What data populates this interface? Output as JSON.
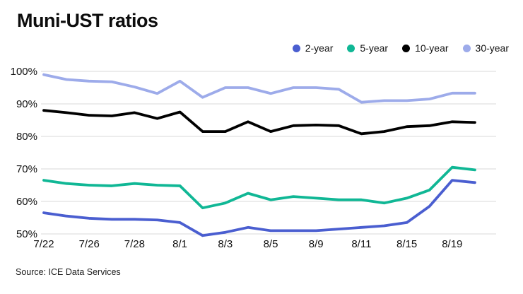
{
  "page": {
    "title": "Muni-UST ratios",
    "source": "Source: ICE Data Services"
  },
  "chart_data": {
    "type": "line",
    "title": "Muni-UST ratios",
    "xlabel": "",
    "ylabel": "",
    "ylim": [
      50,
      100
    ],
    "grid": true,
    "legend_position": "top-right",
    "y_ticks": [
      100,
      90,
      80,
      70,
      60,
      50
    ],
    "y_tick_suffix": "%",
    "x_tick_labels": [
      "7/22",
      "7/26",
      "7/28",
      "8/1",
      "8/3",
      "8/5",
      "8/9",
      "8/11",
      "8/15",
      "8/19"
    ],
    "x_tick_indices": [
      0,
      2,
      4,
      6,
      8,
      10,
      12,
      14,
      16,
      18
    ],
    "n_points": 20,
    "colors": {
      "grid": "#d9d9d9",
      "text": "#111111"
    },
    "series": [
      {
        "name": "2-year",
        "color": "#4a5ed0",
        "values": [
          56.5,
          55.5,
          54.8,
          54.5,
          54.5,
          54.3,
          53.5,
          49.5,
          50.5,
          52,
          51,
          51,
          51,
          51.5,
          52,
          52.5,
          53.5,
          58.5,
          66.5,
          65.8
        ]
      },
      {
        "name": "5-year",
        "color": "#10b795",
        "values": [
          66.5,
          65.5,
          65,
          64.8,
          65.5,
          65,
          64.8,
          58,
          59.5,
          62.5,
          60.5,
          61.5,
          61,
          60.5,
          60.5,
          59.5,
          61,
          63.5,
          70.5,
          69.7
        ]
      },
      {
        "name": "10-year",
        "color": "#000000",
        "values": [
          88,
          87.3,
          86.5,
          86.3,
          87.3,
          85.5,
          87.5,
          81.5,
          81.5,
          84.5,
          81.5,
          83.3,
          83.5,
          83.3,
          80.8,
          81.5,
          83,
          83.3,
          84.5,
          84.3
        ]
      },
      {
        "name": "30-year",
        "color": "#9dabea",
        "values": [
          99,
          97.5,
          97,
          96.8,
          95.2,
          93.2,
          97,
          92,
          95,
          95,
          93.2,
          95,
          95,
          94.5,
          90.5,
          91,
          91,
          91.5,
          93.3,
          93.3
        ]
      }
    ]
  }
}
